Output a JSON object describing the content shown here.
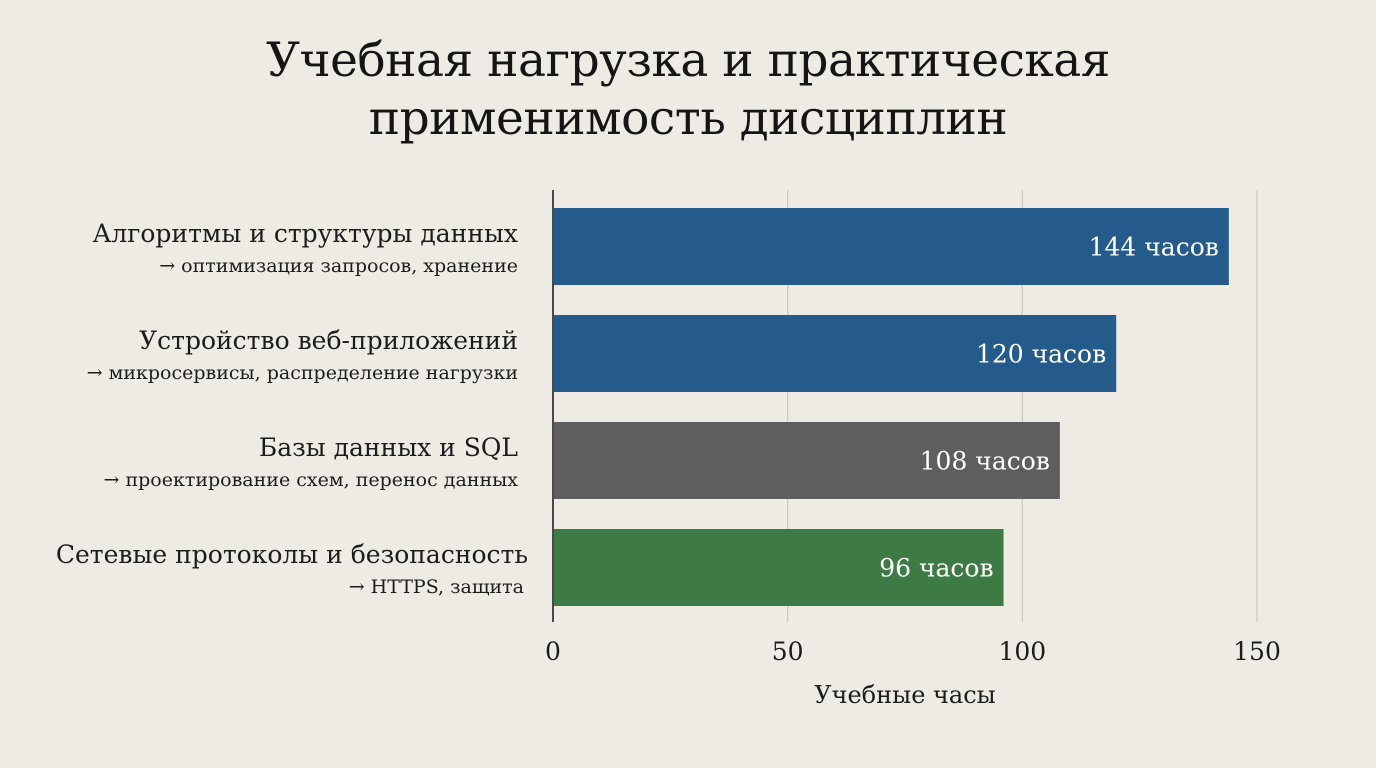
{
  "chart_data": {
    "type": "bar",
    "orientation": "horizontal",
    "title": "Учебная нагрузка и практическая применимость дисциплин",
    "title_lines": [
      "Учебная нагрузка и практическая",
      "применимость дисциплин"
    ],
    "xlabel": "Учебные часы",
    "ylabel": "",
    "xlim": [
      0,
      150
    ],
    "xticks": [
      0,
      50,
      100,
      150
    ],
    "xtick_labels": [
      "0",
      "50",
      "100",
      "150"
    ],
    "grid": true,
    "categories": [
      "Алгоритмы и структуры данных",
      "Устройство веб-приложений",
      "Базы данных и SQL",
      "Сетевые протоколы и безопасность"
    ],
    "subtitles": [
      "→ оптимизация запросов, хранение",
      "→ микросервисы, распределение нагрузки",
      "→ проектирование схем, перенос данных",
      "→ HTTPS, защита"
    ],
    "values": [
      144,
      120,
      108,
      96
    ],
    "data_labels": [
      "144 часов",
      "120 часов",
      "108 часов",
      "96 часов"
    ],
    "colors": [
      "#245B8A",
      "#245B8A",
      "#5E5E5E",
      "#3D7A44"
    ]
  }
}
